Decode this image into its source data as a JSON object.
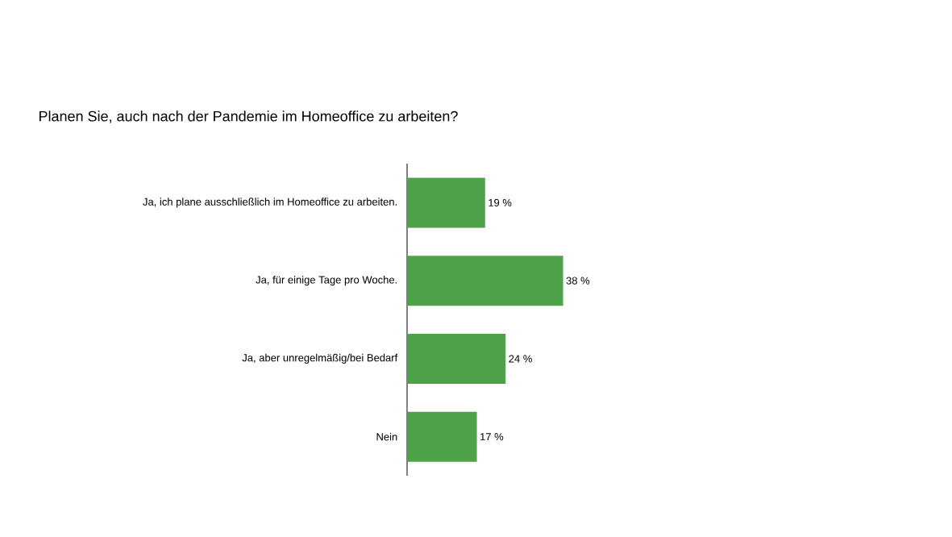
{
  "chart_data": {
    "type": "bar",
    "orientation": "horizontal",
    "title": "Planen Sie, auch nach der Pandemie im Homeoffice zu arbeiten?",
    "categories": [
      "Ja, ich plane ausschließlich im Homeoffice zu arbeiten.",
      "Ja, für einige Tage pro Woche.",
      "Ja, aber unregelmäßig/bei Bedarf",
      "Nein"
    ],
    "values": [
      19,
      38,
      24,
      17
    ],
    "value_labels": [
      "19 %",
      "38 %",
      "24 %",
      "17 %"
    ],
    "color": "#4ea24a"
  }
}
